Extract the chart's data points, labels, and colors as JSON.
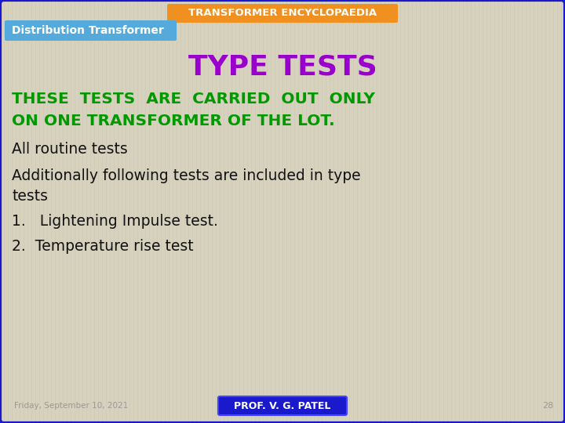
{
  "title_header": "TRANSFORMER ENCYCLOPAEDIA",
  "subtitle_header": "Distribution Transformer",
  "main_title": "TYPE TESTS",
  "green_text_line1": "THESE  TESTS  ARE  CARRIED  OUT  ONLY",
  "green_text_line2": "ON ONE TRANSFORMER OF THE LOT.",
  "body_line1": "All routine tests",
  "body_line2": "Additionally following tests are included in type",
  "body_line3": "tests",
  "body_line4": "1.   Lightening Impulse test.",
  "body_line5": "2.  Temperature rise test",
  "footer_date": "Friday, September 10, 2021",
  "footer_name": "PROF. V. G. PATEL",
  "footer_page": "28",
  "bg_color": "#d6d2be",
  "stripe_color": "#c8c4b0",
  "outer_border_color": "#1a1acc",
  "header_bg_color": "#f09020",
  "header_text_color": "#ffffff",
  "subheader_bg_color": "#55aadd",
  "subheader_text_color": "#ffffff",
  "main_title_color": "#9900cc",
  "green_text_color": "#009900",
  "body_text_color": "#111111",
  "footer_name_bg": "#1a1acc",
  "footer_name_color": "#ffffff",
  "footer_text_color": "#999999"
}
